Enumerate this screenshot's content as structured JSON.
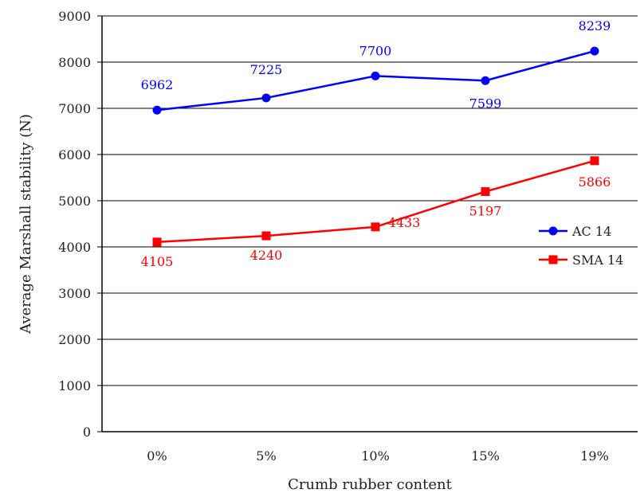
{
  "chart_data": {
    "type": "line",
    "categories": [
      "0%",
      "5%",
      "10%",
      "15%",
      "19%"
    ],
    "series": [
      {
        "name": "AC 14",
        "values": [
          6962,
          7225,
          7700,
          7599,
          8239
        ],
        "color": "#0000ff",
        "marker": "circle"
      },
      {
        "name": "SMA 14",
        "values": [
          4105,
          4240,
          4433,
          5197,
          5866
        ],
        "color": "#ff0000",
        "marker": "square"
      }
    ],
    "xlabel": "Crumb rubber content",
    "ylabel": "Average Marshall stability (N)",
    "ylim": [
      0,
      9000
    ],
    "yticks": [
      0,
      1000,
      2000,
      3000,
      4000,
      5000,
      6000,
      7000,
      8000,
      9000
    ],
    "grid": "horizontal",
    "legend_position": "right"
  }
}
